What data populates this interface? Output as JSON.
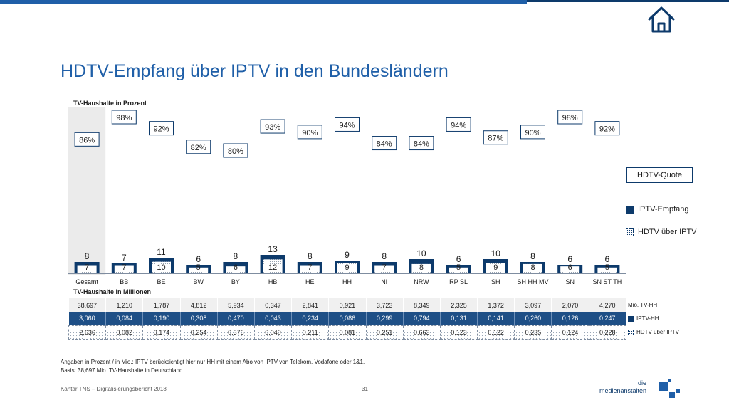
{
  "title": "HDTV-Empfang über IPTV in den Bundesländern",
  "subtitle": "TV-Haushalte in Prozent",
  "mio_title": "TV-Haushalte in Millionen",
  "legend": {
    "quote": "HDTV-Quote",
    "iptv": "IPTV-Empfang",
    "hdtv": "HDTV über IPTV"
  },
  "row_legend": {
    "total": "Mio. TV-HH",
    "iptv": "IPTV-HH",
    "hdtv": "HDTV über IPTV"
  },
  "colors": {
    "brand": "#1f5fa8",
    "dark": "#0d3a6b",
    "highlight": "#ebebeb"
  },
  "icons": [
    "home-icon"
  ],
  "chart_data": {
    "type": "bar",
    "categories": [
      "Gesamt",
      "BB",
      "BE",
      "BW",
      "BY",
      "HB",
      "HE",
      "HH",
      "NI",
      "NRW",
      "RP SL",
      "SH",
      "SH HH MV",
      "SN",
      "SN ST TH"
    ],
    "series": [
      {
        "name": "IPTV-Empfang",
        "values": [
          8,
          7,
          11,
          6,
          8,
          13,
          8,
          9,
          8,
          10,
          6,
          10,
          8,
          6,
          6
        ]
      },
      {
        "name": "HDTV über IPTV",
        "values": [
          7,
          7,
          10,
          5,
          6,
          12,
          7,
          9,
          7,
          8,
          5,
          9,
          8,
          6,
          5
        ]
      },
      {
        "name": "HDTV-Quote",
        "values": [
          86,
          98,
          92,
          82,
          80,
          93,
          90,
          94,
          84,
          84,
          94,
          87,
          90,
          98,
          92
        ],
        "labels": [
          "86%",
          "98%",
          "92%",
          "82%",
          "80%",
          "93%",
          "90%",
          "94%",
          "84%",
          "84%",
          "94%",
          "87%",
          "90%",
          "98%",
          "92%"
        ]
      }
    ],
    "table": {
      "total": [
        "38,697",
        "1,210",
        "1,787",
        "4,812",
        "5,934",
        "0,347",
        "2,841",
        "0,921",
        "3,723",
        "8,349",
        "2,325",
        "1,372",
        "3,097",
        "2,070",
        "4,270"
      ],
      "iptv": [
        "3,060",
        "0,084",
        "0,190",
        "0,308",
        "0,470",
        "0,043",
        "0,234",
        "0,086",
        "0,299",
        "0,794",
        "0,131",
        "0,141",
        "0,260",
        "0,126",
        "0,247"
      ],
      "hdtv": [
        "2,636",
        "0,082",
        "0,174",
        "0,254",
        "0,376",
        "0,040",
        "0,211",
        "0,081",
        "0,251",
        "0,663",
        "0,123",
        "0,122",
        "0,235",
        "0,124",
        "0,228"
      ]
    }
  },
  "footnote_1": "Angaben in Prozent / in Mio.; IPTV berücksichtigt hier nur HH mit einem Abo von IPTV von Telekom, Vodafone oder 1&1.",
  "footnote_2": "Basis: 38,697 Mio. TV-Haushalte in Deutschland",
  "footer_source": "Kantar TNS – Digitalisierungsbericht 2018",
  "page_number": "31",
  "logo": {
    "line1": "die",
    "line2": "medienanstalten"
  }
}
